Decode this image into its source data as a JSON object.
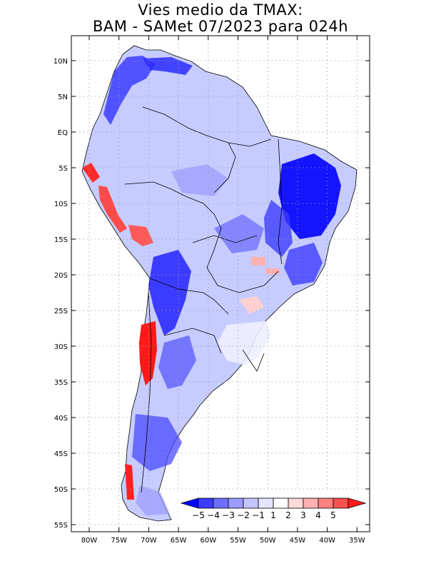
{
  "map": {
    "title_line1": "Vies medio da TMAX:",
    "title_line2": "BAM - SAMet 07/2023  para 024h",
    "lat_labels": [
      "10N",
      "5N",
      "EQ",
      "5S",
      "10S",
      "15S",
      "20S",
      "25S",
      "30S",
      "35S",
      "40S",
      "45S",
      "50S",
      "55S"
    ],
    "lon_labels": [
      "80W",
      "75W",
      "70W",
      "65W",
      "60W",
      "55W",
      "50W",
      "45W",
      "40W",
      "35W"
    ],
    "colorbar": {
      "labels": [
        "-5",
        "-4",
        "-3",
        "-2",
        "-1",
        "1",
        "2",
        "3",
        "4",
        "5"
      ],
      "colors": [
        "#0000ff",
        "#3c3cff",
        "#6e6eff",
        "#9a9aff",
        "#c4c4ff",
        "#e4e4ff",
        "#ffffff",
        "#ffd8d8",
        "#ffb0b0",
        "#ff8080",
        "#ff5050",
        "#ff1a1a"
      ]
    }
  }
}
